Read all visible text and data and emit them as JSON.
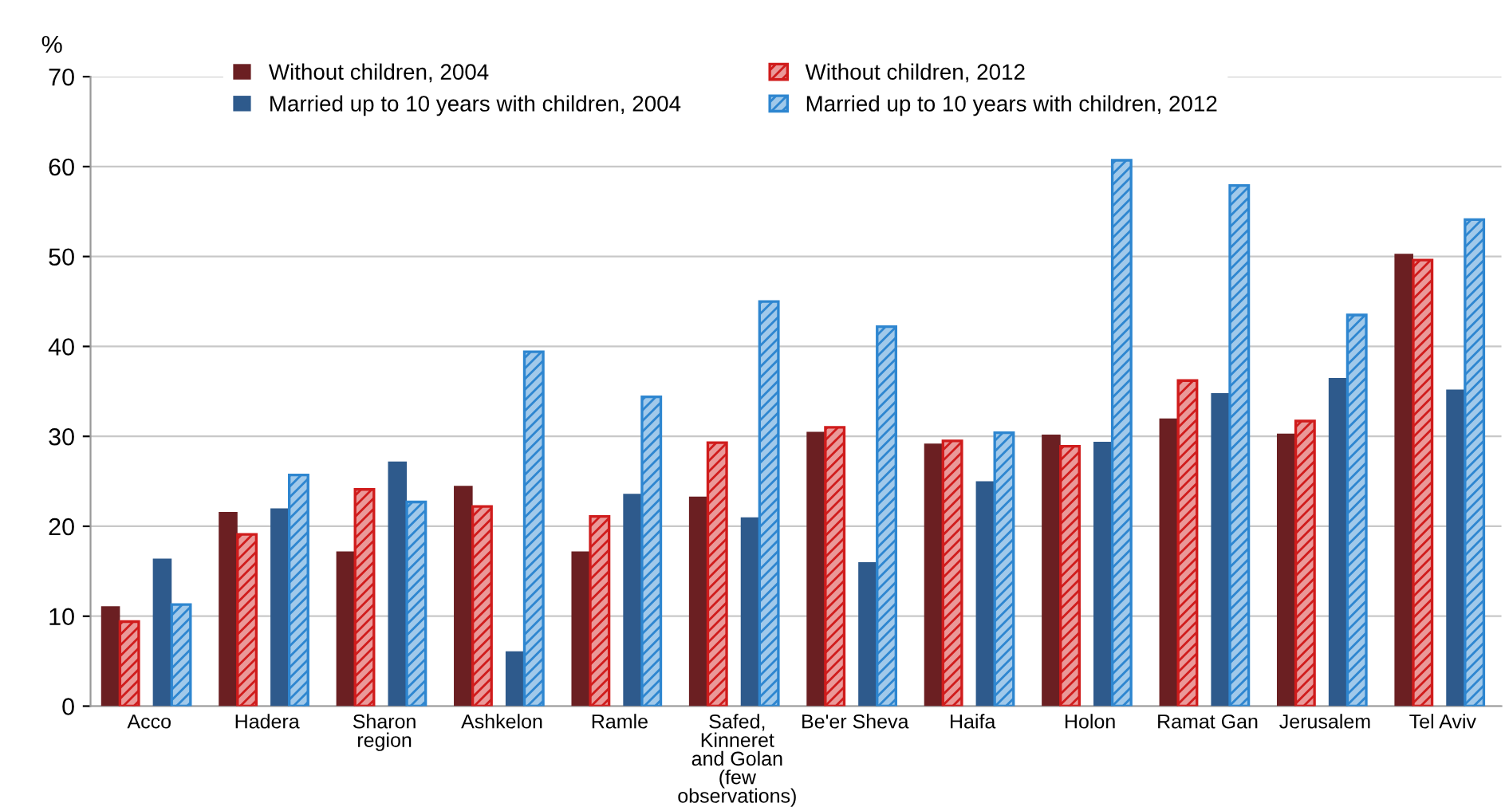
{
  "chart_data": {
    "type": "bar",
    "ylabel": "%",
    "categories": [
      "Acco",
      "Hadera",
      "Sharon region",
      "Ashkelon",
      "Ramle",
      "Safed, Kinneret and Golan (few observations)",
      "Be'er Sheva",
      "Haifa",
      "Holon",
      "Ramat Gan",
      "Jerusalem",
      "Tel Aviv"
    ],
    "series": [
      {
        "name": "Without children, 2004",
        "color": "#6b1f22",
        "values": [
          11.1,
          21.6,
          17.2,
          24.5,
          17.2,
          23.3,
          30.5,
          29.2,
          30.2,
          32.0,
          30.3,
          50.3
        ]
      },
      {
        "name": "Without children, 2012",
        "color": "#d01c1c",
        "values": [
          9.4,
          19.1,
          24.1,
          22.2,
          21.1,
          29.3,
          31.0,
          29.5,
          28.9,
          36.2,
          31.7,
          49.6
        ]
      },
      {
        "name": "Married up to 10 years with children, 2004",
        "color": "#2e5a8c",
        "values": [
          16.4,
          22.0,
          27.2,
          6.1,
          23.6,
          21.0,
          16.0,
          25.0,
          29.4,
          34.8,
          36.5,
          35.2
        ]
      },
      {
        "name": "Married up to 10 years with children, 2012",
        "color": "#2e86d0",
        "values": [
          11.3,
          25.7,
          22.7,
          39.4,
          34.4,
          45.0,
          42.2,
          30.4,
          60.7,
          57.9,
          43.5,
          54.1
        ]
      }
    ],
    "ylim": [
      0,
      70
    ],
    "yticks": [
      0,
      10,
      20,
      30,
      40,
      50,
      60,
      70
    ],
    "grid": "y",
    "legend": "top"
  }
}
